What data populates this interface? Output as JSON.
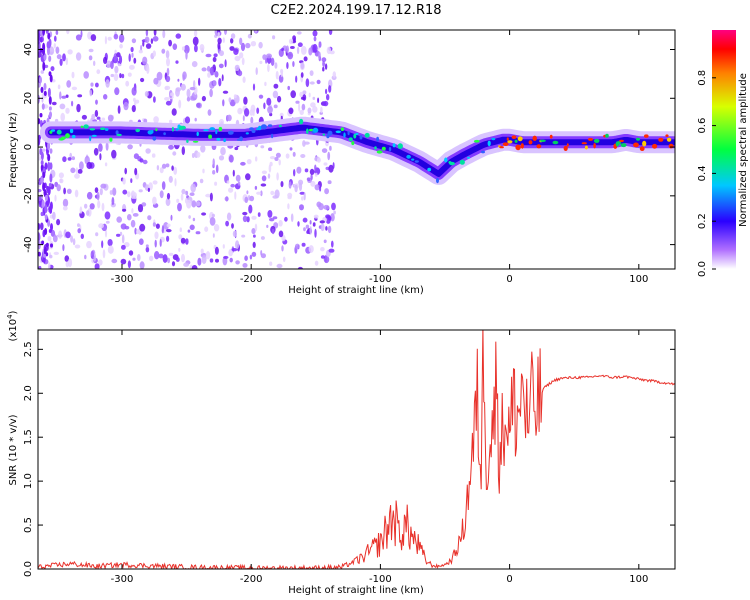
{
  "title": "C2E2.2024.199.17.12.R18",
  "chart_data": [
    {
      "type": "heatmap",
      "xlabel": "Height of straight line (km)",
      "ylabel": "Frequency (Hz)",
      "xlim": [
        -365,
        128
      ],
      "ylim": [
        -50,
        48
      ],
      "xticks": [
        -300,
        -200,
        -100,
        0,
        100
      ],
      "yticks": [
        -40,
        -20,
        0,
        20,
        40
      ],
      "grid": false,
      "noise_region_x": [
        -365,
        -135
      ],
      "signal_trace": {
        "x": [
          -355,
          -300,
          -240,
          -205,
          -160,
          -130,
          -110,
          -90,
          -70,
          -55,
          -45,
          -35,
          -20,
          -5,
          0,
          10,
          30,
          50,
          80,
          90,
          100,
          128
        ],
        "y": [
          6,
          6,
          5,
          5,
          8,
          6,
          2,
          -1,
          -6,
          -11,
          -6,
          -3,
          1,
          3,
          3,
          2,
          2,
          2,
          2,
          3,
          2,
          2
        ]
      },
      "colorbar": {
        "label": "Normalized spectral amplitude",
        "range": [
          0.0,
          1.0
        ],
        "ticks": [
          "0.0",
          "0.2",
          "0.4",
          "0.6",
          "0.8"
        ]
      }
    },
    {
      "type": "line",
      "xlabel": "Height of straight line (km)",
      "ylabel": "SNR (10 * v/v)",
      "multiplier_label": "(x10",
      "multiplier_exp": "4",
      "xlim": [
        -365,
        128
      ],
      "ylim": [
        0,
        2.72
      ],
      "xticks": [
        -300,
        -200,
        -100,
        0,
        100
      ],
      "yticks": [
        0.0,
        0.5,
        1.0,
        1.5,
        2.0,
        2.5
      ],
      "ytick_labels": [
        "0.0",
        "0.5",
        "1.0",
        "1.5",
        "2.0",
        "2.5"
      ],
      "grid": false,
      "series": [
        {
          "color": "#e8312a",
          "x": [
            -365,
            -340,
            -320,
            -300,
            -250,
            -200,
            -150,
            -130,
            -115,
            -100,
            -95,
            -90,
            -85,
            -80,
            -75,
            -70,
            -65,
            -60,
            -55,
            -50,
            -45,
            -40,
            -35,
            -32,
            -28,
            -25,
            -22,
            -20,
            -18,
            -15,
            -12,
            -10,
            -8,
            -5,
            -2,
            0,
            3,
            6,
            10,
            14,
            18,
            22,
            26,
            30,
            35,
            40,
            50,
            60,
            70,
            80,
            90,
            100,
            110,
            120,
            128
          ],
          "y": [
            0.02,
            0.06,
            0.03,
            0.05,
            0.02,
            0.01,
            0.01,
            0.02,
            0.12,
            0.3,
            0.45,
            0.6,
            0.4,
            0.5,
            0.35,
            0.25,
            0.1,
            0.04,
            0.03,
            0.05,
            0.1,
            0.25,
            0.5,
            0.9,
            1.4,
            1.9,
            1.1,
            2.72,
            1.2,
            1.5,
            1.7,
            2.2,
            1.3,
            1.6,
            1.8,
            1.5,
            1.9,
            1.7,
            2.1,
            1.6,
            1.9,
            1.85,
            2.05,
            2.1,
            2.15,
            2.17,
            2.18,
            2.18,
            2.2,
            2.18,
            2.19,
            2.16,
            2.14,
            2.12,
            2.1
          ]
        }
      ]
    }
  ]
}
